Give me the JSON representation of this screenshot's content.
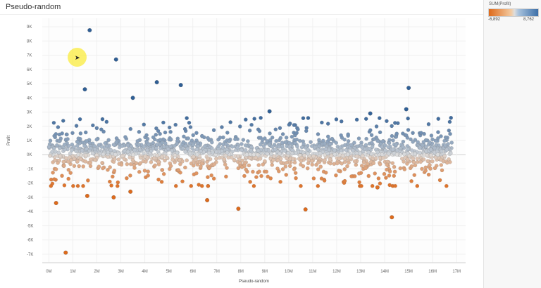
{
  "sheet": {
    "title": "Pseudo-random"
  },
  "legend": {
    "title": "SUM(Profit)",
    "min_label": "-6,892",
    "max_label": "8,762",
    "color_low": "#de6a1b",
    "color_mid": "#dddddd",
    "color_high": "#2f5f96"
  },
  "cursor": {
    "icon": "pointer-cursor-icon"
  },
  "chart_data": {
    "type": "scatter",
    "xlabel": "Pseudo-random",
    "ylabel": "Profit",
    "xlim": [
      -0.1,
      17.2
    ],
    "ylim": [
      -7.6,
      9.6
    ],
    "x_ticks": [
      "0M",
      "1M",
      "2M",
      "3M",
      "4M",
      "5M",
      "6M",
      "7M",
      "8M",
      "9M",
      "10M",
      "11M",
      "12M",
      "13M",
      "14M",
      "15M",
      "16M",
      "17M"
    ],
    "y_ticks": [
      "9K",
      "8K",
      "7K",
      "6K",
      "5K",
      "4K",
      "3K",
      "2K",
      "1K",
      "0K",
      "-1K",
      "-2K",
      "-3K",
      "-4K",
      "-5K",
      "-6K",
      "-7K"
    ],
    "y_tick_values": [
      9,
      8,
      7,
      6,
      5,
      4,
      3,
      2,
      1,
      0,
      -1,
      -2,
      -3,
      -4,
      -5,
      -6,
      -7
    ],
    "grid": true,
    "notable_points": [
      {
        "x": 1.7,
        "y": 8.76
      },
      {
        "x": 2.8,
        "y": 6.7
      },
      {
        "x": 1.5,
        "y": 4.6
      },
      {
        "x": 3.5,
        "y": 4.0
      },
      {
        "x": 4.5,
        "y": 5.1
      },
      {
        "x": 5.5,
        "y": 4.9
      },
      {
        "x": 15.0,
        "y": 4.7
      },
      {
        "x": 14.9,
        "y": 3.2
      },
      {
        "x": 13.4,
        "y": 2.9
      },
      {
        "x": 9.2,
        "y": 3.05
      },
      {
        "x": 0.3,
        "y": -3.4
      },
      {
        "x": 0.7,
        "y": -6.89
      },
      {
        "x": 1.6,
        "y": -2.9
      },
      {
        "x": 2.7,
        "y": -3.0
      },
      {
        "x": 3.4,
        "y": -2.6
      },
      {
        "x": 6.6,
        "y": -3.2
      },
      {
        "x": 7.9,
        "y": -3.8
      },
      {
        "x": 10.7,
        "y": -3.85
      },
      {
        "x": 14.3,
        "y": -4.4
      },
      {
        "x": 13.7,
        "y": -2.3
      }
    ]
  }
}
